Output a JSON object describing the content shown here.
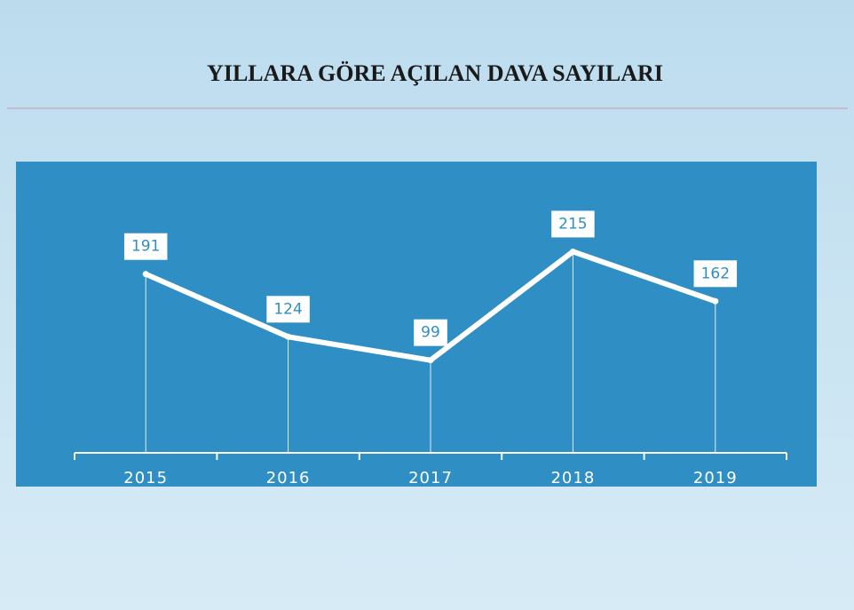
{
  "chart_data": {
    "type": "line",
    "title": "YILLARA GÖRE AÇILAN DAVA SAYILARI",
    "categories": [
      "2015",
      "2016",
      "2017",
      "2018",
      "2019"
    ],
    "values": [
      191,
      124,
      99,
      215,
      162
    ],
    "color": "#ffffff"
  }
}
